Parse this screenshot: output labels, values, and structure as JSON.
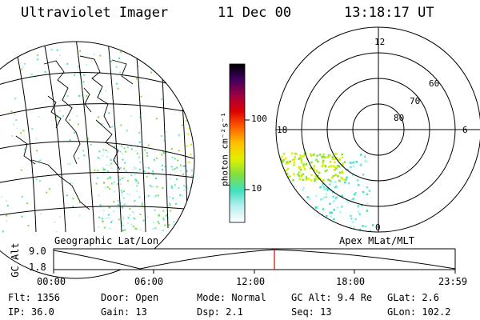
{
  "header": {
    "instrument": "Ultraviolet Imager",
    "date": "11 Dec 00",
    "time": "13:18:17 UT"
  },
  "colorbar": {
    "unit_label": "photon cm⁻²s⁻¹",
    "ticks": [
      "100",
      "10"
    ],
    "scale": "log"
  },
  "left_panel": {
    "caption": "Geographic Lat/Lon"
  },
  "right_panel": {
    "caption": "Apex MLat/MLT",
    "mlt_labels": {
      "top": "12",
      "left": "18",
      "right": "6",
      "bottom": "0"
    },
    "mlat_labels": [
      "60",
      "70",
      "80"
    ]
  },
  "altitude_plot": {
    "ylabel": "GC Alt",
    "yticks": [
      "9.0",
      "1.8"
    ],
    "xticks": [
      "00:00",
      "06:00",
      "12:00",
      "18:00",
      "23:59"
    ],
    "current_time_marker": "13:18"
  },
  "status": {
    "flt": "Flt: 1356",
    "ip": "IP: 36.0",
    "door": "Door: Open",
    "gain": "Gain: 13",
    "mode": "Mode: Normal",
    "dsp": "Dsp:     2.1",
    "gc_alt": "GC Alt: 9.4 Re",
    "seq": "Seq: 13",
    "glat": "GLat:     2.6",
    "glon": "GLon: 102.2"
  },
  "colors": {
    "colorbar_stops": [
      "#ffffff",
      "#b8f0f0",
      "#40e0c0",
      "#80e040",
      "#e0f000",
      "#ffc000",
      "#ff6000",
      "#e00000",
      "#a00040",
      "#400060",
      "#000000"
    ],
    "marker": "#e00000"
  }
}
